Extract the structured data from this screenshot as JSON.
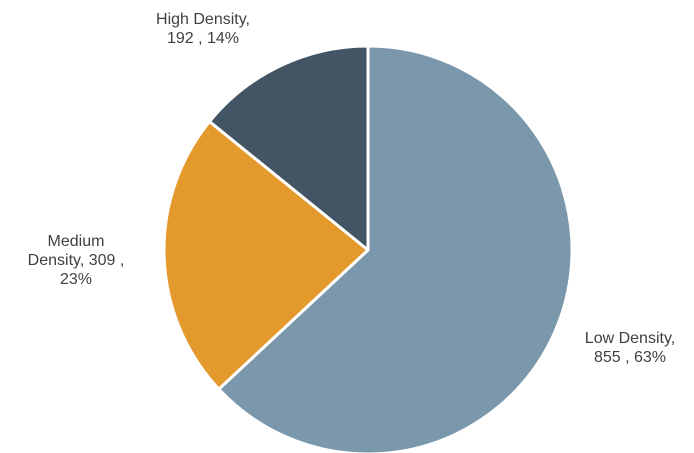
{
  "chart_data": {
    "type": "pie",
    "start_angle_deg": 0,
    "direction": "clockwise",
    "slices": [
      {
        "name": "Low Density",
        "value": 855,
        "percent": "63%",
        "color": "#7a97ab",
        "label_lines": [
          "Low Density,",
          "855 , 63%"
        ]
      },
      {
        "name": "Medium Density",
        "value": 309,
        "percent": "23%",
        "color": "#e3992c",
        "label_lines": [
          "Medium",
          "Density,  309 ,",
          "23%"
        ]
      },
      {
        "name": "High Density",
        "value": 192,
        "percent": "14%",
        "color": "#435565",
        "label_lines": [
          "High Density,",
          "192 , 14%"
        ]
      }
    ]
  }
}
